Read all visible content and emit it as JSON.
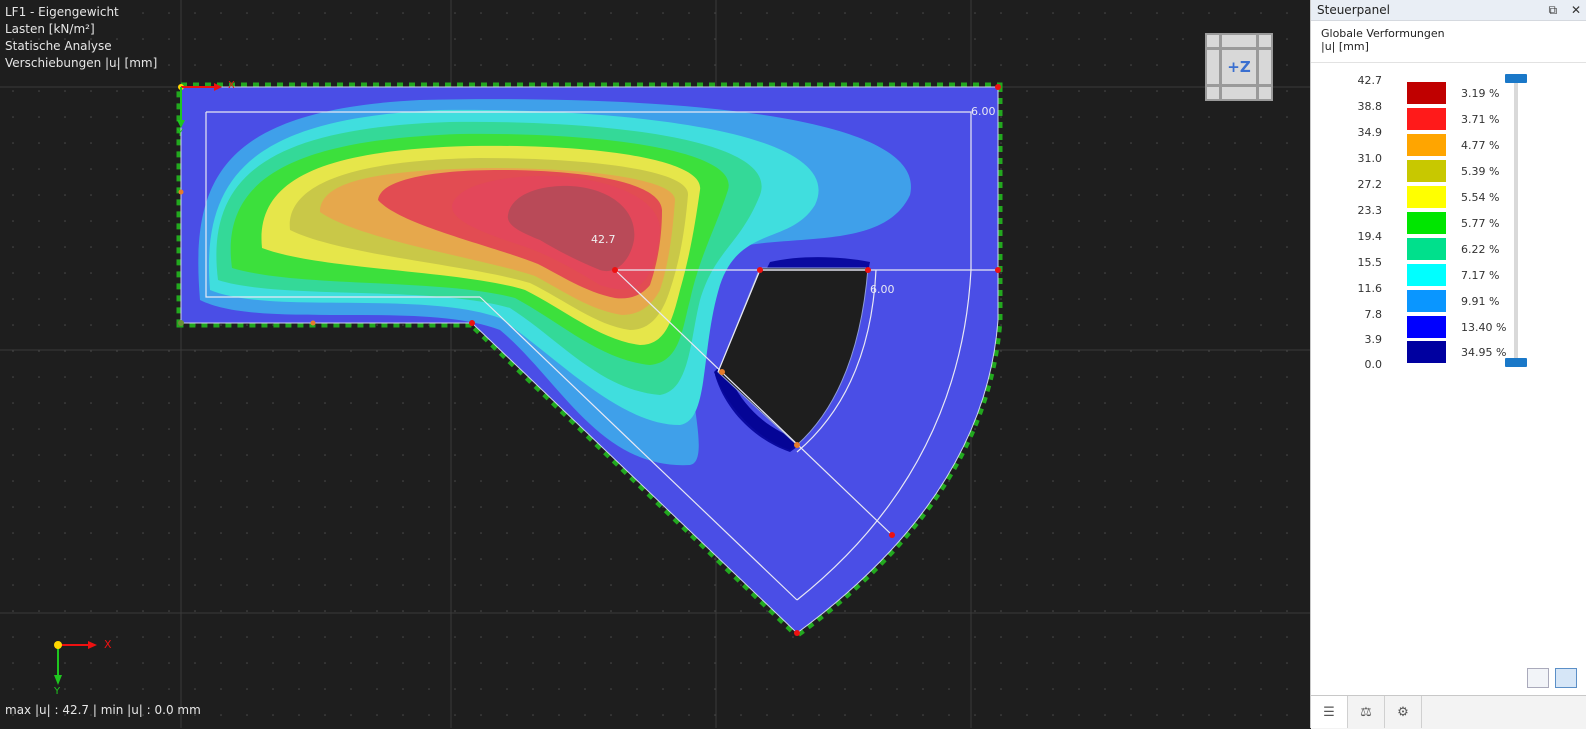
{
  "viewport": {
    "info_lines": [
      "LF1 - Eigengewicht",
      "Lasten [kN/m²]",
      "Statische Analyse",
      "Verschiebungen |u| [mm]"
    ],
    "max_label": "42.7",
    "dim_labels": [
      "6.00",
      "6.00"
    ],
    "status": "max |u| : 42.7 | min |u| : 0.0 mm",
    "axis_x": "X",
    "axis_y": "Y",
    "axis_x_small": "X",
    "axis_y_small": "Y",
    "navcube_label": "+Z"
  },
  "panel": {
    "title": "Steuerpanel",
    "heading": "Globale Verformungen",
    "unit": "|u| [mm]",
    "restore_icon": "restore-window-icon",
    "close_icon": "close-icon",
    "legend_values": [
      "42.7",
      "38.8",
      "34.9",
      "31.0",
      "27.2",
      "23.3",
      "19.4",
      "15.5",
      "11.6",
      "7.8",
      "3.9",
      "0.0"
    ],
    "legend_bands": [
      {
        "color": "#c00000",
        "pct": "3.19 %"
      },
      {
        "color": "#ff1a1a",
        "pct": "3.71 %"
      },
      {
        "color": "#ffa500",
        "pct": "4.77 %"
      },
      {
        "color": "#c8c800",
        "pct": "5.39 %"
      },
      {
        "color": "#ffff00",
        "pct": "5.54 %"
      },
      {
        "color": "#00e600",
        "pct": "5.77 %"
      },
      {
        "color": "#00e08c",
        "pct": "6.22 %"
      },
      {
        "color": "#00ffff",
        "pct": "7.17 %"
      },
      {
        "color": "#0a96ff",
        "pct": "9.91 %"
      },
      {
        "color": "#0000ff",
        "pct": "13.40 %"
      },
      {
        "color": "#0000a0",
        "pct": "34.95 %"
      }
    ],
    "tabs": [
      "color-scale-icon",
      "balance-icon",
      "settings-icon"
    ]
  }
}
